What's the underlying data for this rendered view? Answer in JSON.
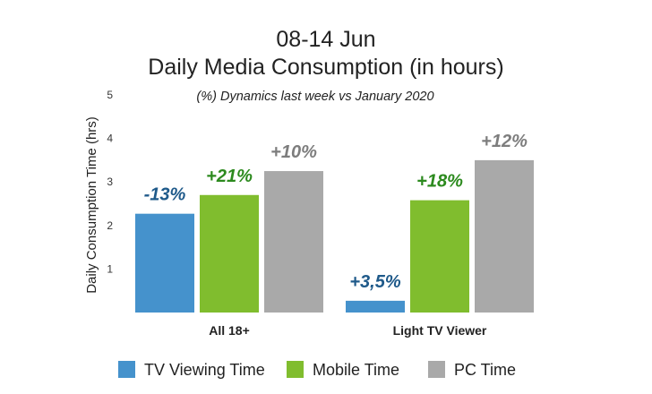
{
  "chart_data": {
    "type": "bar",
    "title": "08-14 Jun",
    "subtitle": "Daily Media Consumption (in hours)",
    "annotation": "(%) Dynamics last week  vs January 2020",
    "ylabel": "Daily Consumption Time (hrs)",
    "xlabel": "",
    "ylim": [
      0,
      5
    ],
    "yticks": [
      "1",
      "2",
      "3",
      "4",
      "5"
    ],
    "grid": false,
    "legend_position": "bottom",
    "categories": [
      "All 18+",
      "Light TV Viewer"
    ],
    "series": [
      {
        "name": "TV Viewing Time",
        "color": "#4592cc",
        "label_color": "#1f5a8a",
        "values": [
          2.27,
          0.27
        ],
        "labels": [
          "-13%",
          "+3,5%"
        ]
      },
      {
        "name": "Mobile Time",
        "color": "#80bd2e",
        "label_color": "#2c8a1e",
        "values": [
          2.7,
          2.58
        ],
        "labels": [
          "+21%",
          "+18%"
        ]
      },
      {
        "name": "PC Time",
        "color": "#a9a9a9",
        "label_color": "#7d7d7d",
        "values": [
          3.25,
          3.5
        ],
        "labels": [
          "+10%",
          "+12%"
        ]
      }
    ]
  }
}
